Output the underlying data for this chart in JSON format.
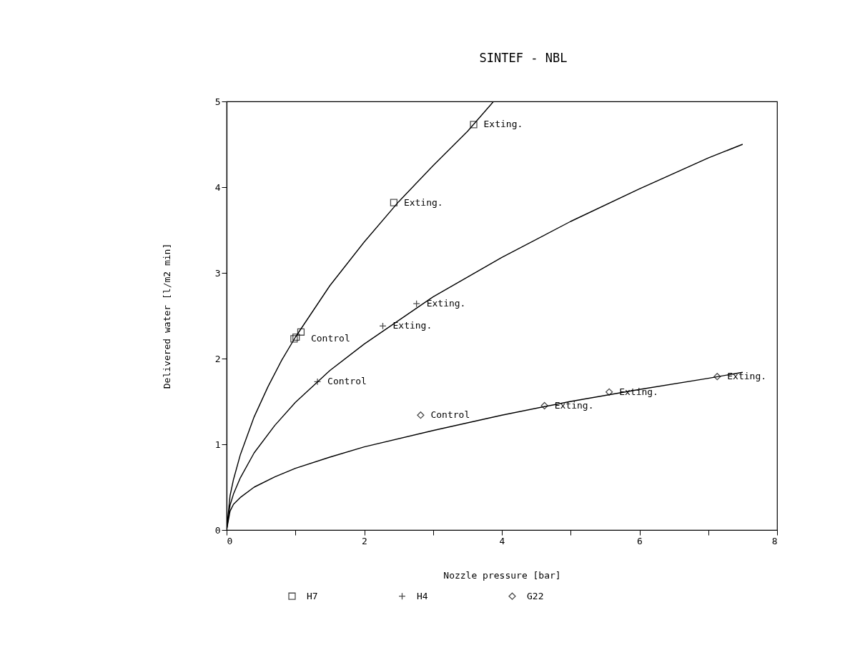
{
  "chart_data": {
    "type": "scatter",
    "title": "SINTEF - NBL",
    "xlabel": "Nozzle pressure [bar]",
    "ylabel": "Delivered water [l/m2 min]",
    "xlim": [
      0,
      8
    ],
    "ylim": [
      0,
      5
    ],
    "xticks": [
      0,
      {
        "value": 1,
        "label": null
      },
      2,
      {
        "value": 3,
        "label": null
      },
      4,
      {
        "value": 5,
        "label": null
      },
      6,
      {
        "value": 7,
        "label": null
      },
      8
    ],
    "yticks": [
      0,
      1,
      2,
      3,
      4,
      5
    ],
    "grid": false,
    "legend": "bottom",
    "series": [
      {
        "name": "H7",
        "marker": "square",
        "color": "#000000",
        "x": [
          0.98,
          1.01,
          1.08,
          2.43,
          3.59
        ],
        "values": [
          2.23,
          2.25,
          2.31,
          3.82,
          4.73
        ]
      },
      {
        "name": "H4",
        "marker": "cross",
        "color": "#000000",
        "x": [
          1.32,
          2.27,
          2.76
        ],
        "values": [
          1.73,
          2.38,
          2.64
        ]
      },
      {
        "name": "G22",
        "marker": "diamond",
        "color": "#000000",
        "x": [
          2.82,
          4.62,
          5.56,
          7.13
        ],
        "values": [
          1.34,
          1.45,
          1.61,
          1.79
        ]
      },
      {
        "type": "line",
        "color": "#000000",
        "x": [
          0,
          0.05,
          0.1,
          0.2,
          0.4,
          0.6,
          0.8,
          1,
          1.5,
          2,
          2.5,
          3,
          3.5,
          3.88
        ],
        "values": [
          0,
          0.4,
          0.59,
          0.88,
          1.32,
          1.67,
          1.98,
          2.25,
          2.85,
          3.36,
          3.83,
          4.25,
          4.65,
          5
        ]
      },
      {
        "type": "line",
        "color": "#000000",
        "x": [
          0,
          0.05,
          0.1,
          0.2,
          0.4,
          0.7,
          1,
          1.5,
          2,
          3,
          4,
          5,
          6,
          7,
          7.5
        ],
        "values": [
          0,
          0.29,
          0.42,
          0.61,
          0.9,
          1.22,
          1.49,
          1.86,
          2.17,
          2.72,
          3.18,
          3.6,
          3.98,
          4.34,
          4.5
        ]
      },
      {
        "type": "line",
        "color": "#000000",
        "x": [
          0,
          0.05,
          0.1,
          0.2,
          0.4,
          0.7,
          1,
          1.5,
          2,
          3,
          4,
          5,
          6,
          7,
          7.5
        ],
        "values": [
          0,
          0.22,
          0.3,
          0.38,
          0.5,
          0.62,
          0.72,
          0.85,
          0.97,
          1.16,
          1.34,
          1.5,
          1.64,
          1.77,
          1.84
        ]
      }
    ],
    "annotations": [
      {
        "text": "Control",
        "x": 1.08,
        "y": 2.23
      },
      {
        "text": "Exting.",
        "x": 2.43,
        "y": 3.82
      },
      {
        "text": "Exting.",
        "x": 3.59,
        "y": 4.73
      },
      {
        "text": "Control",
        "x": 1.32,
        "y": 1.73
      },
      {
        "text": "Exting.",
        "x": 2.27,
        "y": 2.38
      },
      {
        "text": "Exting.",
        "x": 2.76,
        "y": 2.64
      },
      {
        "text": "Control",
        "x": 2.82,
        "y": 1.34
      },
      {
        "text": "Exting.",
        "x": 4.62,
        "y": 1.45
      },
      {
        "text": "Exting.",
        "x": 5.56,
        "y": 1.61
      },
      {
        "text": "Exting.",
        "x": 7.13,
        "y": 1.79
      }
    ]
  }
}
